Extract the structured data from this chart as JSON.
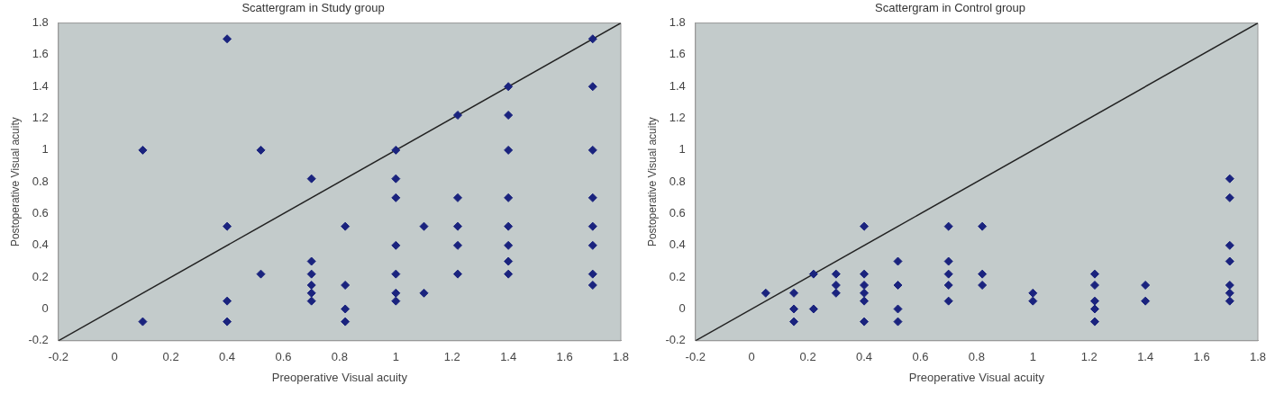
{
  "chart_data": [
    {
      "type": "scatter",
      "title": "Scattergram in Study group",
      "xlabel": "Preoperative Visual acuity",
      "ylabel": "Postoperative Visual acuity",
      "xlim": [
        -0.2,
        1.8
      ],
      "ylim": [
        -0.2,
        1.8
      ],
      "xticks": [
        -0.2,
        0,
        0.2,
        0.4,
        0.6,
        0.8,
        1,
        1.2,
        1.4,
        1.6,
        1.8
      ],
      "yticks": [
        -0.2,
        0,
        0.2,
        0.4,
        0.6,
        0.8,
        1,
        1.2,
        1.4,
        1.6,
        1.8
      ],
      "grid": false,
      "legend": false,
      "series": [
        {
          "marker": "diamond",
          "color": "#1a237e",
          "x": [
            0.1,
            0.1,
            0.4,
            0.4,
            0.4,
            0.4,
            0.52,
            0.52,
            0.7,
            0.7,
            0.7,
            0.7,
            0.7,
            0.7,
            0.82,
            0.82,
            0.82,
            0.82,
            1,
            1,
            1,
            1,
            1,
            1,
            1,
            1.1,
            1.1,
            1.22,
            1.22,
            1.22,
            1.22,
            1.22,
            1.4,
            1.4,
            1.4,
            1.4,
            1.4,
            1.4,
            1.4,
            1.4,
            1.7,
            1.7,
            1.7,
            1.7,
            1.7,
            1.7,
            1.7,
            1.7
          ],
          "values": [
            1,
            -0.08,
            1.7,
            0.52,
            0.05,
            -0.08,
            1,
            0.22,
            0.82,
            0.3,
            0.22,
            0.15,
            0.1,
            0.05,
            0.52,
            0.15,
            0,
            -0.08,
            1,
            0.82,
            0.7,
            0.4,
            0.22,
            0.1,
            0.05,
            0.52,
            0.1,
            1.22,
            0.7,
            0.52,
            0.4,
            0.22,
            1.4,
            1.22,
            1,
            0.7,
            0.52,
            0.4,
            0.3,
            0.22,
            1.7,
            1.4,
            1,
            0.7,
            0.52,
            0.4,
            0.22,
            0.15
          ]
        },
        {
          "type": "line",
          "marker": "none",
          "color": "#222222",
          "x": [
            -0.2,
            1.8
          ],
          "values": [
            -0.2,
            1.8
          ]
        }
      ]
    },
    {
      "type": "scatter",
      "title": "Scattergram in Control group",
      "xlabel": "Preoperative Visual acuity",
      "ylabel": "Postoperative Visual acuity",
      "xlim": [
        -0.2,
        1.8
      ],
      "ylim": [
        -0.2,
        1.8
      ],
      "xticks": [
        -0.2,
        0,
        0.2,
        0.4,
        0.6,
        0.8,
        1,
        1.2,
        1.4,
        1.6,
        1.8
      ],
      "yticks": [
        -0.2,
        0,
        0.2,
        0.4,
        0.6,
        0.8,
        1,
        1.2,
        1.4,
        1.6,
        1.8
      ],
      "grid": false,
      "legend": false,
      "series": [
        {
          "marker": "diamond",
          "color": "#1a237e",
          "x": [
            0.05,
            0.15,
            0.15,
            0.15,
            0.22,
            0.22,
            0.3,
            0.3,
            0.3,
            0.4,
            0.4,
            0.4,
            0.4,
            0.4,
            0.4,
            0.52,
            0.52,
            0.52,
            0.52,
            0.7,
            0.7,
            0.7,
            0.7,
            0.7,
            0.82,
            0.82,
            0.82,
            1,
            1,
            1.22,
            1.22,
            1.22,
            1.22,
            1.22,
            1.4,
            1.4,
            1.7,
            1.7,
            1.7,
            1.7,
            1.7,
            1.7,
            1.7
          ],
          "values": [
            0.1,
            0.1,
            0,
            -0.08,
            0.22,
            0,
            0.22,
            0.15,
            0.1,
            0.52,
            0.22,
            0.15,
            0.1,
            0.05,
            -0.08,
            0.3,
            0.15,
            0,
            -0.08,
            0.52,
            0.3,
            0.22,
            0.15,
            0.05,
            0.52,
            0.22,
            0.15,
            0.1,
            0.05,
            0.22,
            0.15,
            0.05,
            0,
            -0.08,
            0.15,
            0.05,
            0.82,
            0.7,
            0.4,
            0.3,
            0.15,
            0.1,
            0.05
          ]
        },
        {
          "type": "line",
          "marker": "none",
          "color": "#222222",
          "x": [
            -0.2,
            1.8
          ],
          "values": [
            -0.2,
            1.8
          ]
        }
      ]
    }
  ]
}
